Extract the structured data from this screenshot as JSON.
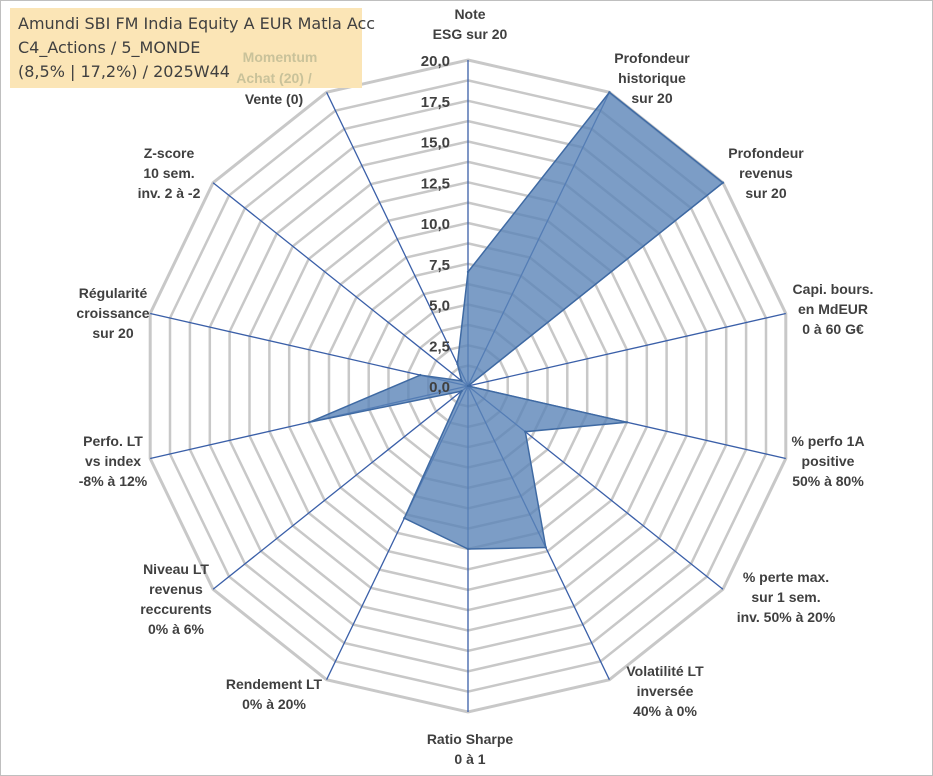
{
  "title": {
    "line1": "Amundi SBI FM India Equity A EUR Matla Acc",
    "line2": "C4_Actions / 5_MONDE",
    "line3": "(8,5% | 17,2%) / 2025W44"
  },
  "momentum": {
    "top": "Momentum",
    "bottom_line1": "Achat (20) /",
    "bottom_line2": "Vente (0)"
  },
  "colors": {
    "fill": "#5b84b8",
    "stroke": "#3f6aa3",
    "axis": "#3a5fa8",
    "grid": "#c8c8c8",
    "title_bg": "#fbe5b6"
  },
  "chart_data": {
    "type": "radar",
    "rlim": [
      0,
      20
    ],
    "grid": true,
    "ticks": [
      "0,0",
      "2,5",
      "5,0",
      "7,5",
      "10,0",
      "12,5",
      "15,0",
      "17,5",
      "20,0"
    ],
    "categories": [
      [
        "Note",
        "ESG sur 20"
      ],
      [
        "Profondeur",
        "historique",
        "sur 20"
      ],
      [
        "Profondeur",
        "revenus",
        "sur 20"
      ],
      [
        "Capi. bours.",
        "en MdEUR",
        "0 à 60 G€"
      ],
      [
        "% perfo 1A",
        "positive",
        "50% à 80%"
      ],
      [
        "% perte max.",
        "sur 1 sem.",
        "inv. 50% à 20%"
      ],
      [
        "Volatilité LT",
        "inversée",
        "40% à 0%"
      ],
      [
        "Ratio Sharpe",
        "0 à 1"
      ],
      [
        "Rendement LT",
        "0% à 20%"
      ],
      [
        "Niveau LT",
        "revenus",
        "reccurents",
        "0% à 6%"
      ],
      [
        "Perfo. LT",
        "vs index",
        "-8% à 12%"
      ],
      [
        "Régularité",
        "croissance",
        "sur 20"
      ],
      [
        "Z-score",
        "10 sem.",
        "inv. 2 à -2"
      ],
      [
        "Momentum",
        "Achat (20) /",
        "Vente (0)"
      ]
    ],
    "series": [
      {
        "values": [
          7,
          20,
          20,
          0,
          10,
          4.5,
          11,
          10,
          9,
          0.5,
          10,
          3,
          0.5,
          1.5
        ]
      }
    ]
  }
}
